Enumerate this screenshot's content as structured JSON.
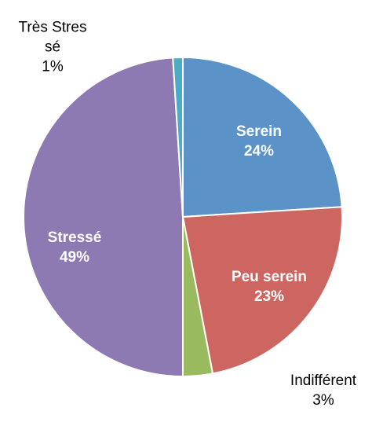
{
  "chart_data": {
    "type": "pie",
    "categories": [
      "Serein",
      "Peu serein",
      "Indifférent",
      "Stressé",
      "Très Stressé"
    ],
    "values": [
      24,
      23,
      3,
      49,
      1
    ],
    "value_labels": [
      "24%",
      "23%",
      "3%",
      "49%",
      "1%"
    ],
    "colors": [
      "#5b93c9",
      "#cd6660",
      "#9aba5f",
      "#8e7ab3",
      "#4bacc6"
    ]
  }
}
